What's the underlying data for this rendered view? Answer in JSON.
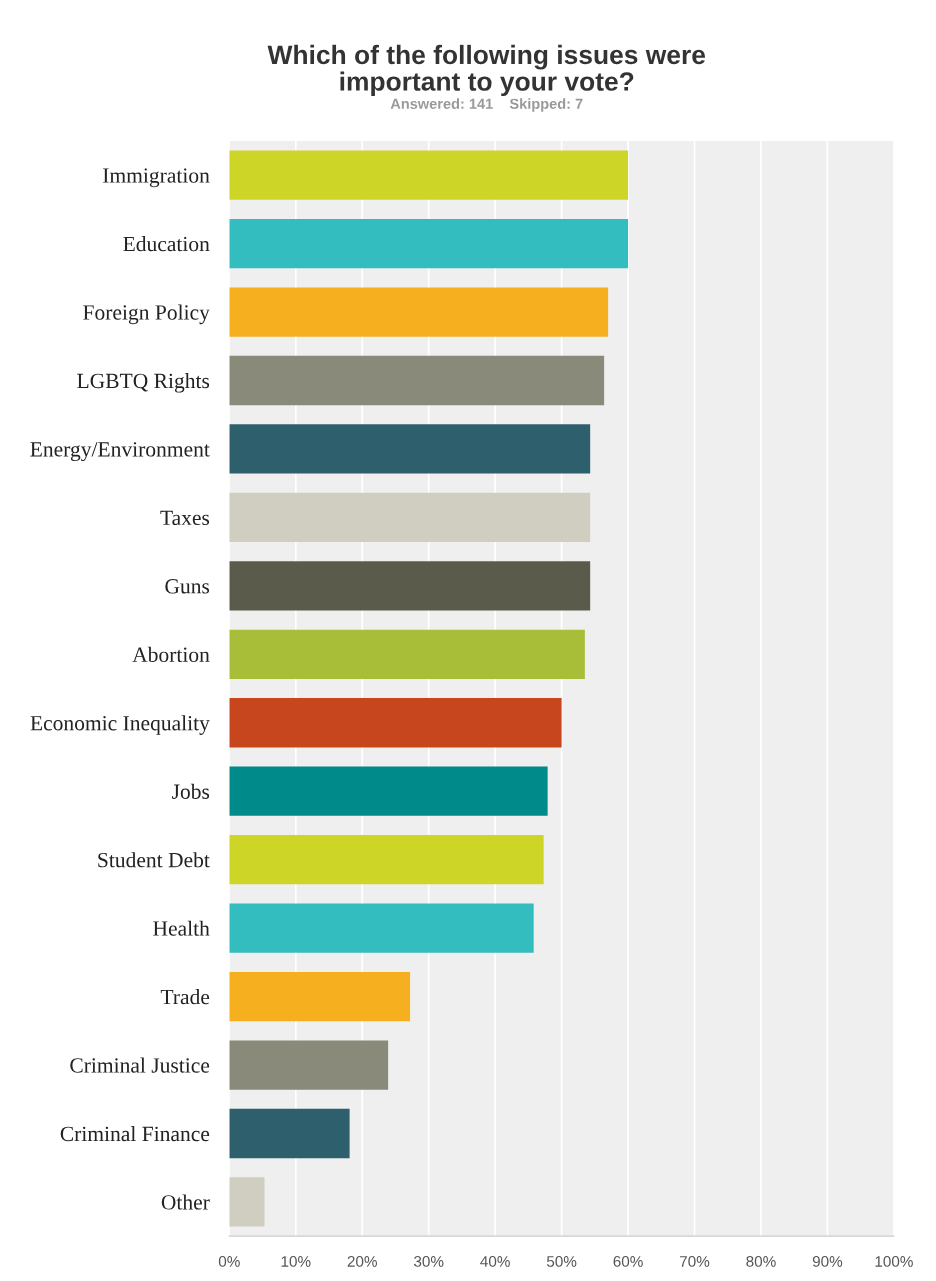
{
  "chart_data": {
    "type": "bar",
    "orientation": "horizontal",
    "title": "Which of the following issues were\nimportant to your vote?",
    "subtitle": "Answered: 141    Skipped: 7",
    "categories": [
      "Immigration",
      "Education",
      "Foreign Policy",
      "LGBTQ Rights",
      "Energy/Environment",
      "Taxes",
      "Guns",
      "Abortion",
      "Economic Inequality",
      "Jobs",
      "Student Debt",
      "Health",
      "Trade",
      "Criminal Justice",
      "Criminal Finance",
      "Other"
    ],
    "values": [
      60.0,
      60.0,
      57.0,
      56.4,
      54.3,
      54.3,
      54.3,
      53.5,
      50.0,
      47.9,
      47.3,
      45.8,
      27.2,
      23.9,
      18.1,
      5.3
    ],
    "colors": [
      "#cdd626",
      "#33bdbf",
      "#f6b01f",
      "#898a79",
      "#2e5f6c",
      "#d0cec1",
      "#5b5b4b",
      "#a9be38",
      "#c8461d",
      "#008a8a",
      "#cdd626",
      "#33bdbf",
      "#f6b01f",
      "#898a79",
      "#2e5f6c",
      "#d0cec1"
    ],
    "xlim": [
      0,
      100
    ],
    "xticks": [
      {
        "value": 0,
        "label": "0%"
      },
      {
        "value": 10,
        "label": "10%"
      },
      {
        "value": 20,
        "label": "20%"
      },
      {
        "value": 30,
        "label": "30%"
      },
      {
        "value": 40,
        "label": "40%"
      },
      {
        "value": 50,
        "label": "50%"
      },
      {
        "value": 60,
        "label": "60%"
      },
      {
        "value": 70,
        "label": "70%"
      },
      {
        "value": 80,
        "label": "80%"
      },
      {
        "value": 90,
        "label": "90%"
      },
      {
        "value": 100,
        "label": "100%"
      }
    ],
    "grid": "x",
    "legend": false
  }
}
